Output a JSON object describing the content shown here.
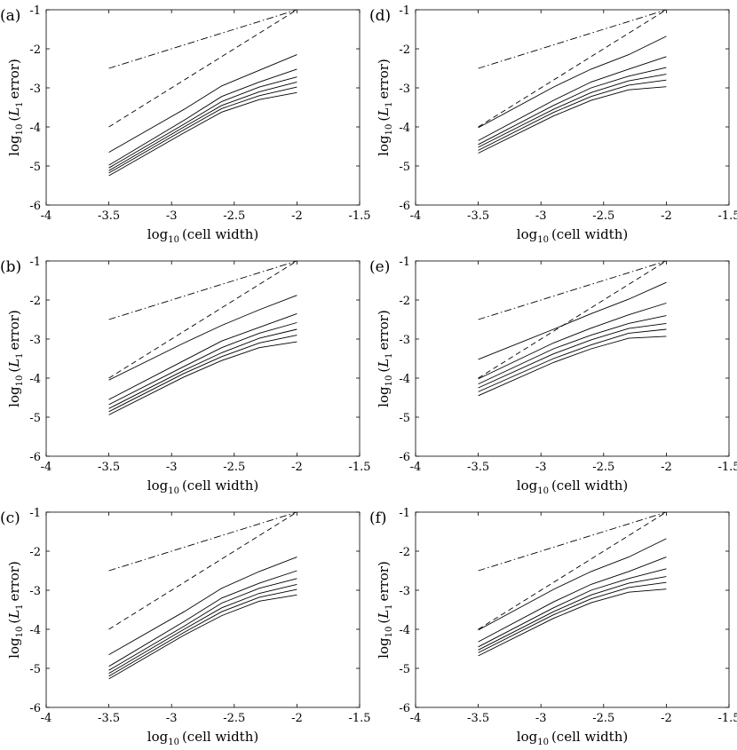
{
  "figure": {
    "x_tick_labels": [
      "-4",
      "-3.5",
      "-3",
      "-2.5",
      "-2",
      "-1.5"
    ],
    "y_tick_labels": [
      "-6",
      "-5",
      "-4",
      "-3",
      "-2",
      "-1"
    ],
    "xlabel_text": "(cell width)",
    "ylabel_text": "error)",
    "log_text": "log",
    "log_sub": "10",
    "l_text": "L",
    "l_sub": "1"
  },
  "chart_data": [
    {
      "panel": "(a)",
      "type": "line",
      "xlabel": "log10 (cell width)",
      "ylabel": "log10 (L1 error)",
      "xlim": [
        -4,
        -1.5
      ],
      "ylim": [
        -6,
        -1
      ],
      "x": [
        -3.5,
        -2.9,
        -2.6,
        -2.3,
        -2.0
      ],
      "reference_lines": [
        {
          "style": "dashdot",
          "x": [
            -3.5,
            -2.0
          ],
          "y": [
            -2.5,
            -1.0
          ]
        },
        {
          "style": "dashed",
          "x": [
            -3.5,
            -2.0
          ],
          "y": [
            -4.0,
            -1.0
          ]
        }
      ],
      "series": [
        {
          "name": "s1",
          "values": [
            -4.65,
            -3.55,
            -2.95,
            -2.55,
            -2.15
          ]
        },
        {
          "name": "s2",
          "values": [
            -4.98,
            -3.83,
            -3.22,
            -2.85,
            -2.52
          ]
        },
        {
          "name": "s3",
          "values": [
            -5.05,
            -3.93,
            -3.35,
            -2.98,
            -2.72
          ]
        },
        {
          "name": "s4",
          "values": [
            -5.12,
            -4.0,
            -3.45,
            -3.1,
            -2.85
          ]
        },
        {
          "name": "s5",
          "values": [
            -5.18,
            -4.07,
            -3.53,
            -3.2,
            -2.98
          ]
        },
        {
          "name": "s6",
          "values": [
            -5.25,
            -4.15,
            -3.62,
            -3.3,
            -3.12
          ]
        }
      ]
    },
    {
      "panel": "(b)",
      "type": "line",
      "xlabel": "log10 (cell width)",
      "ylabel": "log10 (L1 error)",
      "xlim": [
        -4,
        -1.5
      ],
      "ylim": [
        -6,
        -1
      ],
      "x": [
        -3.5,
        -2.9,
        -2.6,
        -2.3,
        -2.0
      ],
      "reference_lines": [
        {
          "style": "dashdot",
          "x": [
            -3.5,
            -2.0
          ],
          "y": [
            -2.5,
            -1.0
          ]
        },
        {
          "style": "dashed",
          "x": [
            -3.5,
            -2.0
          ],
          "y": [
            -4.0,
            -1.0
          ]
        }
      ],
      "series": [
        {
          "name": "s1",
          "values": [
            -4.05,
            -3.1,
            -2.65,
            -2.25,
            -1.88
          ]
        },
        {
          "name": "s2",
          "values": [
            -4.55,
            -3.55,
            -3.05,
            -2.7,
            -2.35
          ]
        },
        {
          "name": "s3",
          "values": [
            -4.68,
            -3.7,
            -3.22,
            -2.85,
            -2.58
          ]
        },
        {
          "name": "s4",
          "values": [
            -4.78,
            -3.8,
            -3.35,
            -2.98,
            -2.75
          ]
        },
        {
          "name": "s5",
          "values": [
            -4.86,
            -3.88,
            -3.45,
            -3.1,
            -2.9
          ]
        },
        {
          "name": "s6",
          "values": [
            -4.94,
            -3.97,
            -3.55,
            -3.22,
            -3.07
          ]
        }
      ]
    },
    {
      "panel": "(c)",
      "type": "line",
      "xlabel": "log10 (cell width)",
      "ylabel": "log10 (L1 error)",
      "xlim": [
        -4,
        -1.5
      ],
      "ylim": [
        -6,
        -1
      ],
      "x": [
        -3.5,
        -2.9,
        -2.6,
        -2.3,
        -2.0
      ],
      "reference_lines": [
        {
          "style": "dashdot",
          "x": [
            -3.5,
            -2.0
          ],
          "y": [
            -2.5,
            -1.0
          ]
        },
        {
          "style": "dashed",
          "x": [
            -3.5,
            -2.0
          ],
          "y": [
            -4.0,
            -1.0
          ]
        }
      ],
      "series": [
        {
          "name": "s1",
          "values": [
            -4.65,
            -3.55,
            -2.95,
            -2.52,
            -2.15
          ]
        },
        {
          "name": "s2",
          "values": [
            -4.95,
            -3.8,
            -3.2,
            -2.82,
            -2.5
          ]
        },
        {
          "name": "s3",
          "values": [
            -5.05,
            -3.92,
            -3.33,
            -2.95,
            -2.7
          ]
        },
        {
          "name": "s4",
          "values": [
            -5.13,
            -4.0,
            -3.45,
            -3.08,
            -2.85
          ]
        },
        {
          "name": "s5",
          "values": [
            -5.2,
            -4.08,
            -3.55,
            -3.18,
            -2.98
          ]
        },
        {
          "name": "s6",
          "values": [
            -5.27,
            -4.15,
            -3.65,
            -3.28,
            -3.12
          ]
        }
      ]
    },
    {
      "panel": "(d)",
      "type": "line",
      "xlabel": "log10 (cell width)",
      "ylabel": "log10 (L1 error)",
      "xlim": [
        -4,
        -1.5
      ],
      "ylim": [
        -6,
        -1
      ],
      "x": [
        -3.5,
        -2.9,
        -2.6,
        -2.3,
        -2.0
      ],
      "reference_lines": [
        {
          "style": "dashdot",
          "x": [
            -3.5,
            -2.0
          ],
          "y": [
            -2.5,
            -1.0
          ]
        },
        {
          "style": "dashed",
          "x": [
            -3.5,
            -2.0
          ],
          "y": [
            -4.0,
            -1.0
          ]
        }
      ],
      "series": [
        {
          "name": "s1",
          "values": [
            -4.02,
            -2.98,
            -2.52,
            -2.15,
            -1.68
          ]
        },
        {
          "name": "s2",
          "values": [
            -4.35,
            -3.32,
            -2.85,
            -2.52,
            -2.2
          ]
        },
        {
          "name": "s3",
          "values": [
            -4.45,
            -3.45,
            -3.0,
            -2.7,
            -2.48
          ]
        },
        {
          "name": "s4",
          "values": [
            -4.52,
            -3.55,
            -3.12,
            -2.82,
            -2.65
          ]
        },
        {
          "name": "s5",
          "values": [
            -4.6,
            -3.63,
            -3.22,
            -2.93,
            -2.8
          ]
        },
        {
          "name": "s6",
          "values": [
            -4.67,
            -3.72,
            -3.32,
            -3.05,
            -2.97
          ]
        }
      ]
    },
    {
      "panel": "(e)",
      "type": "line",
      "xlabel": "log10 (cell width)",
      "ylabel": "log10 (L1 error)",
      "xlim": [
        -4,
        -1.5
      ],
      "ylim": [
        -6,
        -1
      ],
      "x": [
        -3.5,
        -2.9,
        -2.6,
        -2.3,
        -2.0
      ],
      "reference_lines": [
        {
          "style": "dashdot",
          "x": [
            -3.5,
            -2.0
          ],
          "y": [
            -2.5,
            -1.0
          ]
        },
        {
          "style": "dashed",
          "x": [
            -3.5,
            -2.0
          ],
          "y": [
            -4.0,
            -1.0
          ]
        }
      ],
      "series": [
        {
          "name": "s1",
          "values": [
            -3.52,
            -2.75,
            -2.35,
            -1.98,
            -1.55
          ]
        },
        {
          "name": "s2",
          "values": [
            -4.02,
            -3.1,
            -2.72,
            -2.38,
            -2.08
          ]
        },
        {
          "name": "s3",
          "values": [
            -4.15,
            -3.25,
            -2.9,
            -2.6,
            -2.4
          ]
        },
        {
          "name": "s4",
          "values": [
            -4.25,
            -3.38,
            -3.02,
            -2.73,
            -2.6
          ]
        },
        {
          "name": "s5",
          "values": [
            -4.35,
            -3.5,
            -3.15,
            -2.85,
            -2.75
          ]
        },
        {
          "name": "s6",
          "values": [
            -4.45,
            -3.6,
            -3.25,
            -2.98,
            -2.93
          ]
        }
      ]
    },
    {
      "panel": "(f)",
      "type": "line",
      "xlabel": "log10 (cell width)",
      "ylabel": "log10 (L1 error)",
      "xlim": [
        -4,
        -1.5
      ],
      "ylim": [
        -6,
        -1
      ],
      "x": [
        -3.5,
        -2.9,
        -2.6,
        -2.3,
        -2.0
      ],
      "reference_lines": [
        {
          "style": "dashdot",
          "x": [
            -3.5,
            -2.0
          ],
          "y": [
            -2.5,
            -1.0
          ]
        },
        {
          "style": "dashed",
          "x": [
            -3.5,
            -2.0
          ],
          "y": [
            -4.0,
            -1.0
          ]
        }
      ],
      "series": [
        {
          "name": "s1",
          "values": [
            -4.02,
            -2.98,
            -2.52,
            -2.15,
            -1.68
          ]
        },
        {
          "name": "s2",
          "values": [
            -4.32,
            -3.3,
            -2.85,
            -2.52,
            -2.15
          ]
        },
        {
          "name": "s3",
          "values": [
            -4.45,
            -3.45,
            -3.0,
            -2.7,
            -2.45
          ]
        },
        {
          "name": "s4",
          "values": [
            -4.53,
            -3.55,
            -3.12,
            -2.82,
            -2.65
          ]
        },
        {
          "name": "s5",
          "values": [
            -4.6,
            -3.63,
            -3.22,
            -2.93,
            -2.8
          ]
        },
        {
          "name": "s6",
          "values": [
            -4.68,
            -3.72,
            -3.32,
            -3.05,
            -2.97
          ]
        }
      ]
    }
  ]
}
